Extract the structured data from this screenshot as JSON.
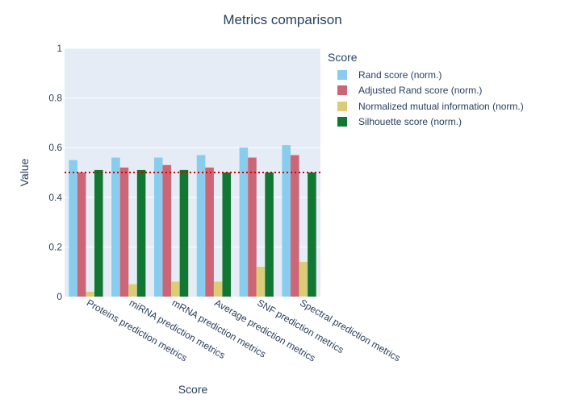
{
  "chart_data": {
    "type": "bar",
    "title": "Metrics comparison",
    "xlabel": "Score",
    "ylabel": "Value",
    "ylim": [
      0,
      1
    ],
    "yticks": [
      0,
      0.2,
      0.4,
      0.6,
      0.8,
      1
    ],
    "ytick_labels": [
      "0",
      "0.2",
      "0.4",
      "0.6",
      "0.8",
      "1"
    ],
    "grid": true,
    "legend_title": "Score",
    "legend_position": "right",
    "categories": [
      "Proteins prediction metrics",
      "miRNA prediction metrics",
      "mRNA prediction metrics",
      "Average prediction metrics",
      "SNF prediction metrics",
      "Spectral prediction metrics"
    ],
    "series": [
      {
        "name": "Rand score (norm.)",
        "color": "#88ccee",
        "values": [
          0.55,
          0.56,
          0.56,
          0.57,
          0.6,
          0.61
        ]
      },
      {
        "name": "Adjusted Rand score (norm.)",
        "color": "#cc6677",
        "values": [
          0.5,
          0.52,
          0.53,
          0.52,
          0.56,
          0.57
        ]
      },
      {
        "name": "Normalized mutual information (norm.)",
        "color": "#ddcc77",
        "values": [
          0.02,
          0.05,
          0.06,
          0.06,
          0.12,
          0.14
        ]
      },
      {
        "name": "Silhouette score (norm.)",
        "color": "#117733",
        "values": [
          0.51,
          0.51,
          0.51,
          0.5,
          0.5,
          0.5
        ]
      }
    ],
    "reference_line": {
      "y": 0.5,
      "color": "#cc0000",
      "style": "dotted"
    }
  },
  "colors": {
    "plot_background": "#e5ecf6",
    "gridline": "#ffffff",
    "text": "#2a3f5f"
  }
}
